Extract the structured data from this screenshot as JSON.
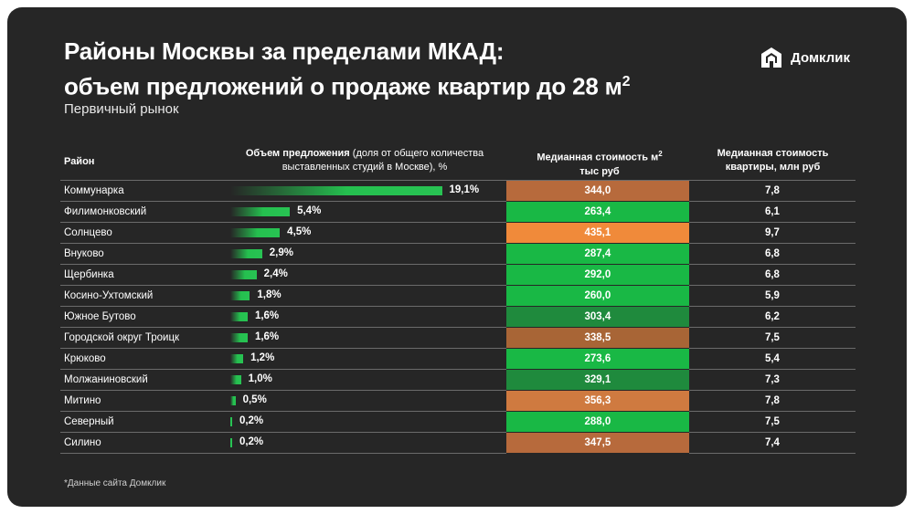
{
  "header": {
    "title_line1": "Районы Москвы за пределами МКАД:",
    "title_line2": "объем предложений о продаже квартир до 28 м",
    "title_sup": "2",
    "subtitle": "Первичный рынок",
    "logo_text": "Домклик"
  },
  "columns": {
    "district": "Район",
    "share_bold": "Объем предложения",
    "share_rest": " (доля от общего количества выставленных студий в Москве), %",
    "price_line1": "Медианная стоимость м",
    "price_sup": "2",
    "price_line2": "тыс руб",
    "apt_line1": "Медианная стоимость",
    "apt_line2": "квартиры, млн руб"
  },
  "footnote": "*Данные сайта Домклик",
  "colors": {
    "background": "#262626",
    "bar": "#28c353",
    "price_green_light": "#19b845",
    "price_green_dark": "#1f8a3d",
    "price_brown": "#b76a3c",
    "price_orange": "#f08a3a"
  },
  "chart_data": {
    "type": "table",
    "max_share": 19.1,
    "rows": [
      {
        "district": "Коммунарка",
        "share": 19.1,
        "share_label": "19,1%",
        "price_m2": "344,0",
        "price_color": "#b76a3c",
        "apt_price": "7,8"
      },
      {
        "district": "Филимонковский",
        "share": 5.4,
        "share_label": "5,4%",
        "price_m2": "263,4",
        "price_color": "#19b845",
        "apt_price": "6,1"
      },
      {
        "district": "Солнцево",
        "share": 4.5,
        "share_label": "4,5%",
        "price_m2": "435,1",
        "price_color": "#f08a3a",
        "apt_price": "9,7"
      },
      {
        "district": "Внуково",
        "share": 2.9,
        "share_label": "2,9%",
        "price_m2": "287,4",
        "price_color": "#19b845",
        "apt_price": "6,8"
      },
      {
        "district": "Щербинка",
        "share": 2.4,
        "share_label": "2,4%",
        "price_m2": "292,0",
        "price_color": "#19b845",
        "apt_price": "6,8"
      },
      {
        "district": "Косино-Ухтомский",
        "share": 1.8,
        "share_label": "1,8%",
        "price_m2": "260,0",
        "price_color": "#19b845",
        "apt_price": "5,9"
      },
      {
        "district": "Южное Бутово",
        "share": 1.6,
        "share_label": "1,6%",
        "price_m2": "303,4",
        "price_color": "#1f8a3d",
        "apt_price": "6,2"
      },
      {
        "district": "Городской округ Троицк",
        "share": 1.6,
        "share_label": "1,6%",
        "price_m2": "338,5",
        "price_color": "#a86536",
        "apt_price": "7,5"
      },
      {
        "district": "Крюково",
        "share": 1.2,
        "share_label": "1,2%",
        "price_m2": "273,6",
        "price_color": "#19b845",
        "apt_price": "5,4"
      },
      {
        "district": "Молжаниновский",
        "share": 1.0,
        "share_label": "1,0%",
        "price_m2": "329,1",
        "price_color": "#1f8a3d",
        "apt_price": "7,3"
      },
      {
        "district": "Митино",
        "share": 0.5,
        "share_label": "0,5%",
        "price_m2": "356,3",
        "price_color": "#cf7a40",
        "apt_price": "7,8"
      },
      {
        "district": "Северный",
        "share": 0.2,
        "share_label": "0,2%",
        "price_m2": "288,0",
        "price_color": "#19b845",
        "apt_price": "7,5"
      },
      {
        "district": "Силино",
        "share": 0.2,
        "share_label": "0,2%",
        "price_m2": "347,5",
        "price_color": "#b76a3c",
        "apt_price": "7,4"
      }
    ]
  }
}
